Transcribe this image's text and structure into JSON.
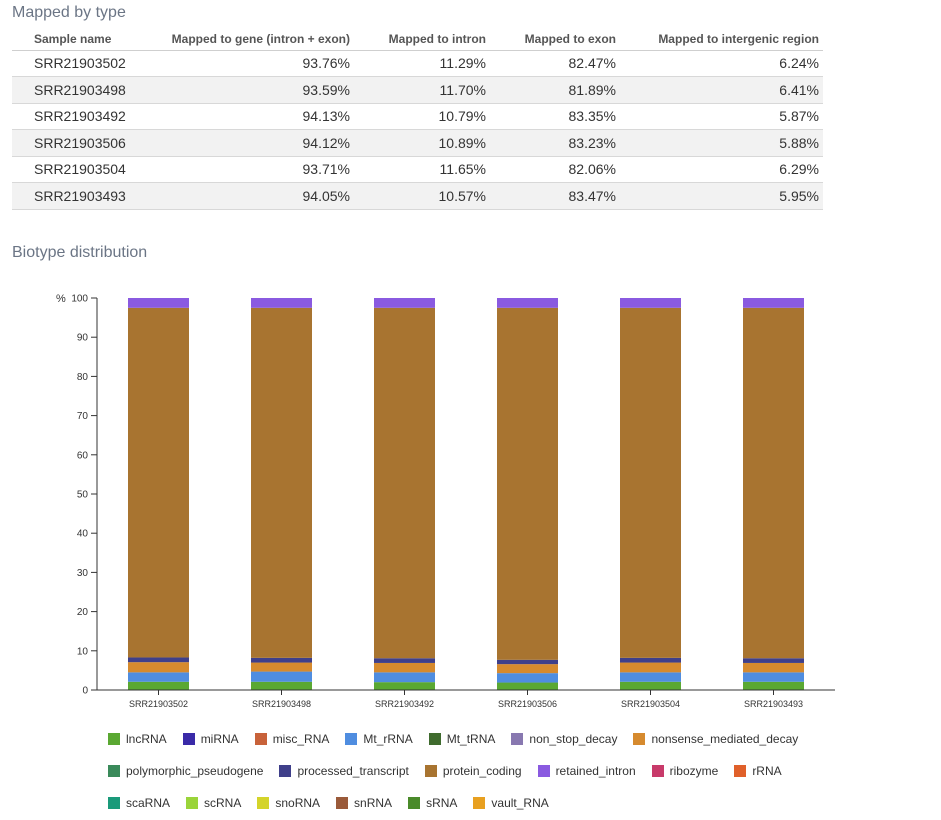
{
  "mapped": {
    "title": "Mapped by type",
    "headers": [
      "Sample name",
      "Mapped to gene (intron + exon)",
      "Mapped to intron",
      "Mapped to exon",
      "Mapped to intergenic region"
    ],
    "rows": [
      [
        "SRR21903502",
        "93.76%",
        "11.29%",
        "82.47%",
        "6.24%"
      ],
      [
        "SRR21903498",
        "93.59%",
        "11.70%",
        "81.89%",
        "6.41%"
      ],
      [
        "SRR21903492",
        "94.13%",
        "10.79%",
        "83.35%",
        "5.87%"
      ],
      [
        "SRR21903506",
        "94.12%",
        "10.89%",
        "83.23%",
        "5.88%"
      ],
      [
        "SRR21903504",
        "93.71%",
        "11.65%",
        "82.06%",
        "6.29%"
      ],
      [
        "SRR21903493",
        "94.05%",
        "10.57%",
        "83.47%",
        "5.95%"
      ]
    ]
  },
  "biotype": {
    "title": "Biotype distribution"
  },
  "chart_data": {
    "type": "bar",
    "stacked": true,
    "ylabel": "%",
    "ylim": [
      0,
      100
    ],
    "yticks": [
      0,
      10,
      20,
      30,
      40,
      50,
      60,
      70,
      80,
      90,
      100
    ],
    "grid": false,
    "legend_position": "bottom",
    "categories": [
      "SRR21903502",
      "SRR21903498",
      "SRR21903492",
      "SRR21903506",
      "SRR21903504",
      "SRR21903493"
    ],
    "series": [
      {
        "name": "lncRNA",
        "color": "#5aa832",
        "values": [
          2.1,
          2.1,
          2.0,
          1.9,
          2.1,
          2.1
        ]
      },
      {
        "name": "miRNA",
        "color": "#3a2aa8",
        "values": [
          0,
          0,
          0,
          0,
          0,
          0
        ]
      },
      {
        "name": "misc_RNA",
        "color": "#c8623a",
        "values": [
          0,
          0,
          0,
          0,
          0,
          0
        ]
      },
      {
        "name": "Mt_rRNA",
        "color": "#4f8de0",
        "values": [
          2.4,
          2.6,
          2.5,
          2.4,
          2.4,
          2.4
        ]
      },
      {
        "name": "Mt_tRNA",
        "color": "#3f6b2e",
        "values": [
          0,
          0,
          0,
          0,
          0,
          0
        ]
      },
      {
        "name": "non_stop_decay",
        "color": "#8878b0",
        "values": [
          0,
          0,
          0,
          0,
          0,
          0
        ]
      },
      {
        "name": "nonsense_mediated_decay",
        "color": "#d68a2e",
        "values": [
          2.6,
          2.3,
          2.4,
          2.3,
          2.5,
          2.4
        ]
      },
      {
        "name": "polymorphic_pseudogene",
        "color": "#3a8a5a",
        "values": [
          0,
          0,
          0,
          0,
          0,
          0
        ]
      },
      {
        "name": "processed_transcript",
        "color": "#3f3f8a",
        "values": [
          1.2,
          1.2,
          1.2,
          1.1,
          1.2,
          1.2
        ]
      },
      {
        "name": "protein_coding",
        "color": "#a87430",
        "values": [
          89.2,
          89.3,
          89.4,
          89.8,
          89.3,
          89.4
        ]
      },
      {
        "name": "retained_intron",
        "color": "#8a5ae0",
        "values": [
          2.5,
          2.5,
          2.5,
          2.5,
          2.5,
          2.5
        ]
      },
      {
        "name": "ribozyme",
        "color": "#c83a6a",
        "values": [
          0,
          0,
          0,
          0,
          0,
          0
        ]
      },
      {
        "name": "rRNA",
        "color": "#e0602a",
        "values": [
          0,
          0,
          0,
          0,
          0,
          0
        ]
      },
      {
        "name": "scaRNA",
        "color": "#1a9a7a",
        "values": [
          0,
          0,
          0,
          0,
          0,
          0
        ]
      },
      {
        "name": "scRNA",
        "color": "#9ad43a",
        "values": [
          0,
          0,
          0,
          0,
          0,
          0
        ]
      },
      {
        "name": "snoRNA",
        "color": "#d4d42a",
        "values": [
          0,
          0,
          0,
          0,
          0,
          0
        ]
      },
      {
        "name": "snRNA",
        "color": "#9a5a3a",
        "values": [
          0,
          0,
          0,
          0,
          0,
          0
        ]
      },
      {
        "name": "sRNA",
        "color": "#4a8a2a",
        "values": [
          0,
          0,
          0,
          0,
          0,
          0
        ]
      },
      {
        "name": "vault_RNA",
        "color": "#e8a020",
        "values": [
          0,
          0,
          0,
          0,
          0,
          0
        ]
      }
    ]
  }
}
